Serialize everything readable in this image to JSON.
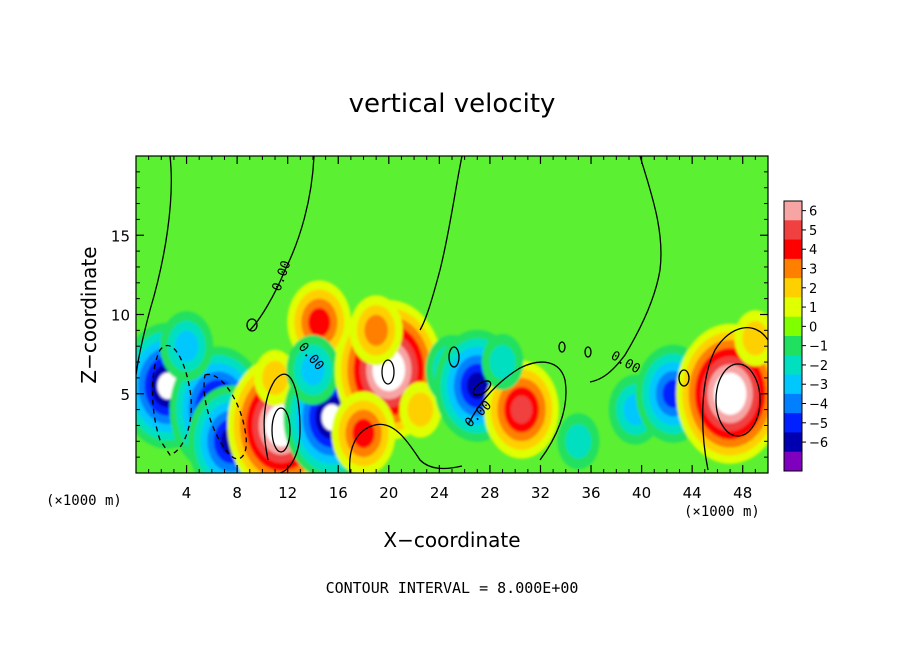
{
  "chart_data": {
    "type": "heatmap",
    "title": "vertical velocity",
    "xlabel": "X−coordinate",
    "ylabel": "Z−coordinate",
    "x_unit_label": "(×1000 m)",
    "y_unit_label": "(×1000 m)",
    "xlim": [
      0,
      50
    ],
    "ylim": [
      0,
      20
    ],
    "x_ticks": [
      4,
      8,
      12,
      16,
      20,
      24,
      28,
      32,
      36,
      40,
      44,
      48
    ],
    "y_ticks": [
      5,
      10,
      15
    ],
    "colorbar": {
      "ticks": [
        "6",
        "5",
        "4",
        "3",
        "2",
        "1",
        "0",
        "−1",
        "−2",
        "−3",
        "−4",
        "−5",
        "−6"
      ],
      "colors": [
        "#f7a4a4",
        "#f04040",
        "#ff0000",
        "#ff7f00",
        "#ffd000",
        "#e0ff00",
        "#7fff00",
        "#20e060",
        "#00e0c0",
        "#00c8ff",
        "#0080ff",
        "#0020ff",
        "#0000b0",
        "#8000c0"
      ]
    },
    "blobs": [
      {
        "x": 2.5,
        "z": 5.5,
        "w": -7
      },
      {
        "x": 6.5,
        "z": 4.0,
        "w": -7
      },
      {
        "x": 7.5,
        "z": 2.0,
        "w": -6
      },
      {
        "x": 4.0,
        "z": 8.0,
        "w": -3
      },
      {
        "x": 11.5,
        "z": 3.0,
        "w": 8
      },
      {
        "x": 11.0,
        "z": 6.0,
        "w": 2
      },
      {
        "x": 14.5,
        "z": 9.5,
        "w": 4
      },
      {
        "x": 15.5,
        "z": 3.5,
        "w": -7
      },
      {
        "x": 14.0,
        "z": 6.5,
        "w": -3
      },
      {
        "x": 20.0,
        "z": 6.5,
        "w": 8
      },
      {
        "x": 19.0,
        "z": 9.0,
        "w": 3
      },
      {
        "x": 18.0,
        "z": 2.5,
        "w": 4
      },
      {
        "x": 22.5,
        "z": 4.0,
        "w": 2
      },
      {
        "x": 25.0,
        "z": 6.5,
        "w": -3
      },
      {
        "x": 27.0,
        "z": 5.5,
        "w": -6
      },
      {
        "x": 30.5,
        "z": 4.0,
        "w": 5
      },
      {
        "x": 29.0,
        "z": 7.0,
        "w": -2
      },
      {
        "x": 39.5,
        "z": 4.0,
        "w": -3
      },
      {
        "x": 42.5,
        "z": 5.0,
        "w": -5
      },
      {
        "x": 47.0,
        "z": 5.0,
        "w": 8
      },
      {
        "x": 49.0,
        "z": 8.5,
        "w": 2
      },
      {
        "x": 35.0,
        "z": 2.0,
        "w": -2
      }
    ],
    "contour_levels": [
      "0.00"
    ]
  },
  "footer": {
    "contour_note": "CONTOUR INTERVAL = 8.000E+00"
  }
}
